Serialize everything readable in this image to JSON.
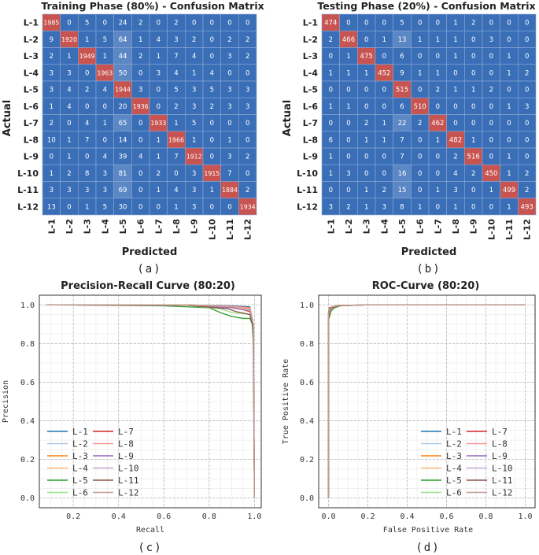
{
  "colors": {
    "cm_diag": "#c75450",
    "cm_off": "#3a6fb8",
    "cm_off_mid": "#5b88c4",
    "cm_text": "#ffffff",
    "grid": "#b8b8b8",
    "series": [
      "#1f77b4",
      "#aec7e8",
      "#ff7f0e",
      "#ffbb78",
      "#2ca02c",
      "#98df8a",
      "#d62728",
      "#ff9896",
      "#9467bd",
      "#c5b0d5",
      "#8c564b",
      "#c49c94"
    ]
  },
  "class_labels": [
    "L-1",
    "L-2",
    "L-3",
    "L-4",
    "L-5",
    "L-6",
    "L-7",
    "L-8",
    "L-9",
    "L-10",
    "L-11",
    "L-12"
  ],
  "chart_data": [
    {
      "type": "heatmap",
      "id": "cm-train",
      "title": "Training Phase (80%) - Confusion Matrix",
      "xlabel": "Predicted",
      "ylabel": "Actual",
      "caption": "(a)",
      "matrix": [
        [
          1985,
          0,
          5,
          0,
          24,
          2,
          0,
          2,
          0,
          0,
          0,
          0
        ],
        [
          9,
          1920,
          1,
          5,
          64,
          1,
          4,
          3,
          2,
          0,
          2,
          2
        ],
        [
          2,
          1,
          1949,
          1,
          44,
          2,
          1,
          7,
          4,
          0,
          3,
          2
        ],
        [
          3,
          3,
          0,
          1963,
          50,
          0,
          3,
          4,
          1,
          4,
          0,
          0
        ],
        [
          3,
          4,
          2,
          4,
          1944,
          3,
          0,
          5,
          3,
          5,
          3,
          3
        ],
        [
          1,
          4,
          0,
          0,
          20,
          1936,
          0,
          2,
          3,
          2,
          3,
          3
        ],
        [
          2,
          0,
          4,
          1,
          65,
          0,
          1933,
          1,
          5,
          0,
          0,
          0
        ],
        [
          10,
          1,
          7,
          0,
          14,
          0,
          1,
          1966,
          1,
          0,
          1,
          0
        ],
        [
          0,
          1,
          0,
          4,
          39,
          4,
          1,
          7,
          1912,
          0,
          3,
          2
        ],
        [
          1,
          2,
          8,
          3,
          81,
          0,
          2,
          0,
          3,
          1915,
          7,
          0
        ],
        [
          3,
          3,
          3,
          3,
          69,
          0,
          1,
          4,
          3,
          1,
          1884,
          2
        ],
        [
          13,
          0,
          1,
          5,
          30,
          0,
          0,
          1,
          3,
          0,
          0,
          1934
        ]
      ]
    },
    {
      "type": "heatmap",
      "id": "cm-test",
      "title": "Testing Phase (20%) - Confusion Matrix",
      "xlabel": "Predicted",
      "ylabel": "Actual",
      "caption": "(b)",
      "matrix": [
        [
          474,
          0,
          0,
          0,
          5,
          0,
          0,
          1,
          2,
          0,
          0,
          0
        ],
        [
          2,
          466,
          0,
          1,
          13,
          1,
          1,
          1,
          0,
          3,
          0,
          0
        ],
        [
          0,
          1,
          475,
          0,
          6,
          0,
          0,
          1,
          0,
          0,
          1,
          0
        ],
        [
          1,
          1,
          1,
          452,
          9,
          1,
          1,
          0,
          0,
          0,
          1,
          2
        ],
        [
          0,
          0,
          0,
          0,
          515,
          0,
          2,
          1,
          1,
          2,
          0,
          0
        ],
        [
          1,
          1,
          0,
          0,
          6,
          510,
          0,
          0,
          0,
          0,
          1,
          3
        ],
        [
          0,
          0,
          2,
          1,
          22,
          2,
          462,
          0,
          0,
          0,
          0,
          0
        ],
        [
          6,
          0,
          1,
          1,
          7,
          0,
          1,
          482,
          1,
          0,
          0,
          0
        ],
        [
          1,
          0,
          0,
          0,
          7,
          0,
          0,
          2,
          516,
          0,
          1,
          0
        ],
        [
          1,
          3,
          0,
          0,
          16,
          0,
          0,
          4,
          2,
          450,
          1,
          2
        ],
        [
          0,
          0,
          1,
          2,
          15,
          0,
          1,
          3,
          0,
          1,
          499,
          2
        ],
        [
          3,
          2,
          1,
          3,
          8,
          1,
          0,
          1,
          0,
          0,
          1,
          493
        ]
      ]
    },
    {
      "type": "line",
      "id": "pr-curve",
      "title": "Precision-Recall Curve (80:20)",
      "xlabel": "Recall",
      "ylabel": "Precision",
      "caption": "(c)",
      "xlim": [
        0.05,
        1.03
      ],
      "ylim": [
        -0.05,
        1.05
      ],
      "xticks": [
        "0.2",
        "0.4",
        "0.6",
        "0.8",
        "1.0"
      ],
      "yticks": [
        "0.0",
        "0.2",
        "0.4",
        "0.6",
        "0.8",
        "1.0"
      ],
      "series": [
        {
          "name": "L-1",
          "x": [
            0.08,
            0.7,
            0.9,
            0.98,
            0.995,
            1.0
          ],
          "y": [
            1.0,
            1.0,
            0.995,
            0.99,
            0.9,
            0.0
          ]
        },
        {
          "name": "L-2",
          "x": [
            0.08,
            0.7,
            0.9,
            0.98,
            0.993,
            1.0
          ],
          "y": [
            1.0,
            0.998,
            0.99,
            0.975,
            0.9,
            0.0
          ]
        },
        {
          "name": "L-3",
          "x": [
            0.08,
            0.7,
            0.9,
            0.98,
            0.995,
            1.0
          ],
          "y": [
            1.0,
            1.0,
            0.993,
            0.985,
            0.9,
            0.0
          ]
        },
        {
          "name": "L-4",
          "x": [
            0.08,
            0.7,
            0.9,
            0.98,
            0.995,
            1.0
          ],
          "y": [
            1.0,
            0.999,
            0.992,
            0.98,
            0.9,
            0.0
          ]
        },
        {
          "name": "L-5",
          "x": [
            0.08,
            0.6,
            0.8,
            0.85,
            0.9,
            0.95,
            0.98,
            0.99,
            0.995,
            1.0
          ],
          "y": [
            1.0,
            0.995,
            0.985,
            0.96,
            0.94,
            0.93,
            0.93,
            0.9,
            0.8,
            0.0
          ]
        },
        {
          "name": "L-6",
          "x": [
            0.08,
            0.7,
            0.85,
            0.9,
            0.95,
            0.98,
            0.995,
            1.0
          ],
          "y": [
            1.0,
            0.998,
            0.98,
            0.96,
            0.955,
            0.95,
            0.88,
            0.0
          ]
        },
        {
          "name": "L-7",
          "x": [
            0.08,
            0.7,
            0.85,
            0.9,
            0.95,
            0.98,
            0.995,
            1.0
          ],
          "y": [
            1.0,
            0.998,
            0.99,
            0.985,
            0.975,
            0.965,
            0.9,
            0.0
          ]
        },
        {
          "name": "L-8",
          "x": [
            0.08,
            0.7,
            0.9,
            0.98,
            0.995,
            1.0
          ],
          "y": [
            1.0,
            0.999,
            0.993,
            0.982,
            0.9,
            0.0
          ]
        },
        {
          "name": "L-9",
          "x": [
            0.08,
            0.7,
            0.9,
            0.95,
            0.98,
            0.995,
            1.0
          ],
          "y": [
            1.0,
            0.998,
            0.985,
            0.975,
            0.97,
            0.9,
            0.0
          ]
        },
        {
          "name": "L-10",
          "x": [
            0.08,
            0.7,
            0.9,
            0.98,
            0.995,
            1.0
          ],
          "y": [
            1.0,
            0.999,
            0.99,
            0.975,
            0.9,
            0.0
          ]
        },
        {
          "name": "L-11",
          "x": [
            0.08,
            0.7,
            0.88,
            0.92,
            0.96,
            0.98,
            0.995,
            1.0
          ],
          "y": [
            1.0,
            0.998,
            0.98,
            0.965,
            0.955,
            0.95,
            0.88,
            0.0
          ]
        },
        {
          "name": "L-12",
          "x": [
            0.08,
            0.7,
            0.9,
            0.98,
            0.995,
            1.0
          ],
          "y": [
            1.0,
            0.999,
            0.99,
            0.97,
            0.9,
            0.0
          ]
        }
      ]
    },
    {
      "type": "line",
      "id": "roc-curve",
      "title": "ROC-Curve (80:20)",
      "xlabel": "False Positive Rate",
      "ylabel": "True Positive Rate",
      "caption": "(d)",
      "xlim": [
        -0.05,
        1.05
      ],
      "ylim": [
        -0.05,
        1.05
      ],
      "xticks": [
        "0.0",
        "0.2",
        "0.4",
        "0.6",
        "0.8",
        "1.0"
      ],
      "yticks": [
        "0.0",
        "0.2",
        "0.4",
        "0.6",
        "0.8",
        "1.0"
      ],
      "series": [
        {
          "name": "L-1",
          "x": [
            0.0,
            0.0,
            0.005,
            0.02,
            0.05,
            0.2,
            1.0
          ],
          "y": [
            0.0,
            0.95,
            0.98,
            0.99,
            0.997,
            1.0,
            1.0
          ]
        },
        {
          "name": "L-2",
          "x": [
            0.0,
            0.0,
            0.008,
            0.02,
            0.05,
            0.2,
            1.0
          ],
          "y": [
            0.0,
            0.93,
            0.97,
            0.985,
            0.995,
            1.0,
            1.0
          ]
        },
        {
          "name": "L-3",
          "x": [
            0.0,
            0.0,
            0.005,
            0.02,
            0.05,
            0.2,
            1.0
          ],
          "y": [
            0.0,
            0.96,
            0.985,
            0.99,
            0.997,
            1.0,
            1.0
          ]
        },
        {
          "name": "L-4",
          "x": [
            0.0,
            0.0,
            0.006,
            0.02,
            0.05,
            0.2,
            1.0
          ],
          "y": [
            0.0,
            0.95,
            0.98,
            0.99,
            0.996,
            1.0,
            1.0
          ]
        },
        {
          "name": "L-5",
          "x": [
            0.0,
            0.0,
            0.01,
            0.015,
            0.03,
            0.06,
            0.2,
            1.0
          ],
          "y": [
            0.0,
            0.92,
            0.96,
            0.97,
            0.985,
            0.995,
            1.0,
            1.0
          ]
        },
        {
          "name": "L-6",
          "x": [
            0.0,
            0.0,
            0.008,
            0.02,
            0.05,
            0.2,
            1.0
          ],
          "y": [
            0.0,
            0.94,
            0.975,
            0.985,
            0.995,
            1.0,
            1.0
          ]
        },
        {
          "name": "L-7",
          "x": [
            0.0,
            0.0,
            0.005,
            0.02,
            0.05,
            0.2,
            1.0
          ],
          "y": [
            0.0,
            0.96,
            0.985,
            0.99,
            0.997,
            1.0,
            1.0
          ]
        },
        {
          "name": "L-8",
          "x": [
            0.0,
            0.0,
            0.005,
            0.02,
            0.05,
            0.2,
            1.0
          ],
          "y": [
            0.0,
            0.95,
            0.98,
            0.99,
            0.997,
            1.0,
            1.0
          ]
        },
        {
          "name": "L-9",
          "x": [
            0.0,
            0.0,
            0.006,
            0.02,
            0.05,
            0.2,
            1.0
          ],
          "y": [
            0.0,
            0.95,
            0.98,
            0.99,
            0.996,
            1.0,
            1.0
          ]
        },
        {
          "name": "L-10",
          "x": [
            0.0,
            0.0,
            0.006,
            0.02,
            0.05,
            0.2,
            1.0
          ],
          "y": [
            0.0,
            0.94,
            0.98,
            0.988,
            0.996,
            1.0,
            1.0
          ]
        },
        {
          "name": "L-11",
          "x": [
            0.0,
            0.0,
            0.008,
            0.02,
            0.05,
            0.2,
            1.0
          ],
          "y": [
            0.0,
            0.93,
            0.975,
            0.985,
            0.995,
            1.0,
            1.0
          ]
        },
        {
          "name": "L-12",
          "x": [
            0.0,
            0.0,
            0.006,
            0.02,
            0.05,
            0.2,
            1.0
          ],
          "y": [
            0.0,
            0.95,
            0.98,
            0.99,
            0.996,
            1.0,
            1.0
          ]
        }
      ]
    }
  ]
}
